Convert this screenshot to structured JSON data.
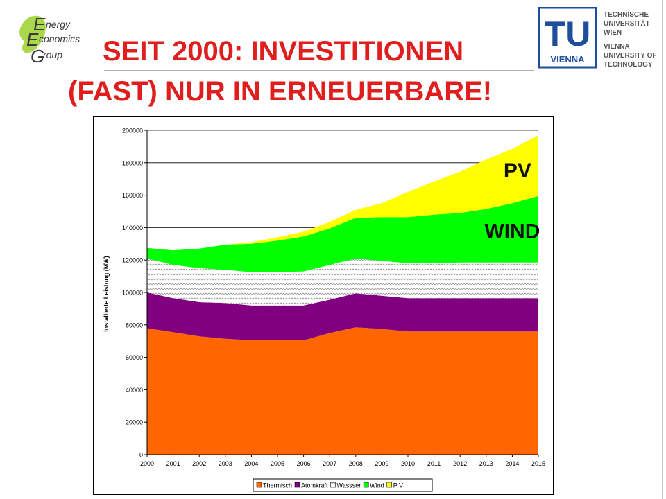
{
  "logo_left": {
    "line1": "nergy",
    "line2": "conomics",
    "line3": "roup"
  },
  "logo_right": {
    "mark": "TU",
    "mark_sub": "VIENNA",
    "lines": [
      "TECHNISCHE",
      "UNIVERSITÄT",
      "WIEN",
      "VIENNA",
      "UNIVERSITY OF",
      "TECHNOLOGY"
    ]
  },
  "title": {
    "line1": "SEIT 2000: INVESTITIONEN",
    "line2": "(FAST) NUR IN ERNEUERBARE!"
  },
  "colors": {
    "title": "#e01e1e",
    "thermisch": "#ff6600",
    "atomkraft": "#800080",
    "wasser": "#ffffff",
    "wind": "#00ff00",
    "pv": "#ffff00"
  },
  "chart_data": {
    "type": "area",
    "stacked": true,
    "x": [
      2000,
      2001,
      2002,
      2003,
      2004,
      2005,
      2006,
      2007,
      2008,
      2009,
      2010,
      2011,
      2012,
      2013,
      2014,
      2015
    ],
    "ylabel": "Installierte Leistung (MW)",
    "ylim": [
      0,
      200000
    ],
    "yticks": [
      0,
      20000,
      40000,
      60000,
      80000,
      100000,
      120000,
      140000,
      160000,
      180000,
      200000
    ],
    "grid": true,
    "legend_position": "bottom",
    "series": [
      {
        "name": "Thermisch",
        "color": "#ff6600",
        "values": [
          78000,
          75500,
          73000,
          71500,
          70500,
          70500,
          70500,
          75000,
          78500,
          77500,
          76000,
          76000,
          76000,
          76000,
          76000,
          76000
        ]
      },
      {
        "name": "Atomkraft",
        "color": "#800080",
        "values": [
          22000,
          21000,
          21000,
          22000,
          21500,
          21500,
          21500,
          20500,
          21000,
          20500,
          20500,
          20500,
          20500,
          20500,
          20500,
          20500
        ]
      },
      {
        "name": "Wassser",
        "color": "#ffffff",
        "pattern": "wave",
        "values": [
          21000,
          20500,
          21000,
          20500,
          20500,
          20500,
          21000,
          21500,
          21500,
          21500,
          21500,
          21500,
          22000,
          22000,
          22000,
          22000
        ]
      },
      {
        "name": "Wind",
        "color": "#00ff00",
        "values": [
          6500,
          9000,
          12000,
          15500,
          17500,
          19500,
          21500,
          22500,
          25000,
          27000,
          28500,
          30000,
          30500,
          33000,
          36500,
          41000
        ]
      },
      {
        "name": "P V",
        "color": "#ffff00",
        "values": [
          0,
          0,
          0,
          0,
          1000,
          2000,
          3000,
          4000,
          5000,
          8500,
          15500,
          20500,
          25500,
          30500,
          33500,
          37500
        ]
      }
    ],
    "annotations": [
      {
        "text": "PV",
        "x": 2014.2,
        "y": 171000
      },
      {
        "text": "WIND",
        "x": 2014.0,
        "y": 133500
      }
    ]
  }
}
